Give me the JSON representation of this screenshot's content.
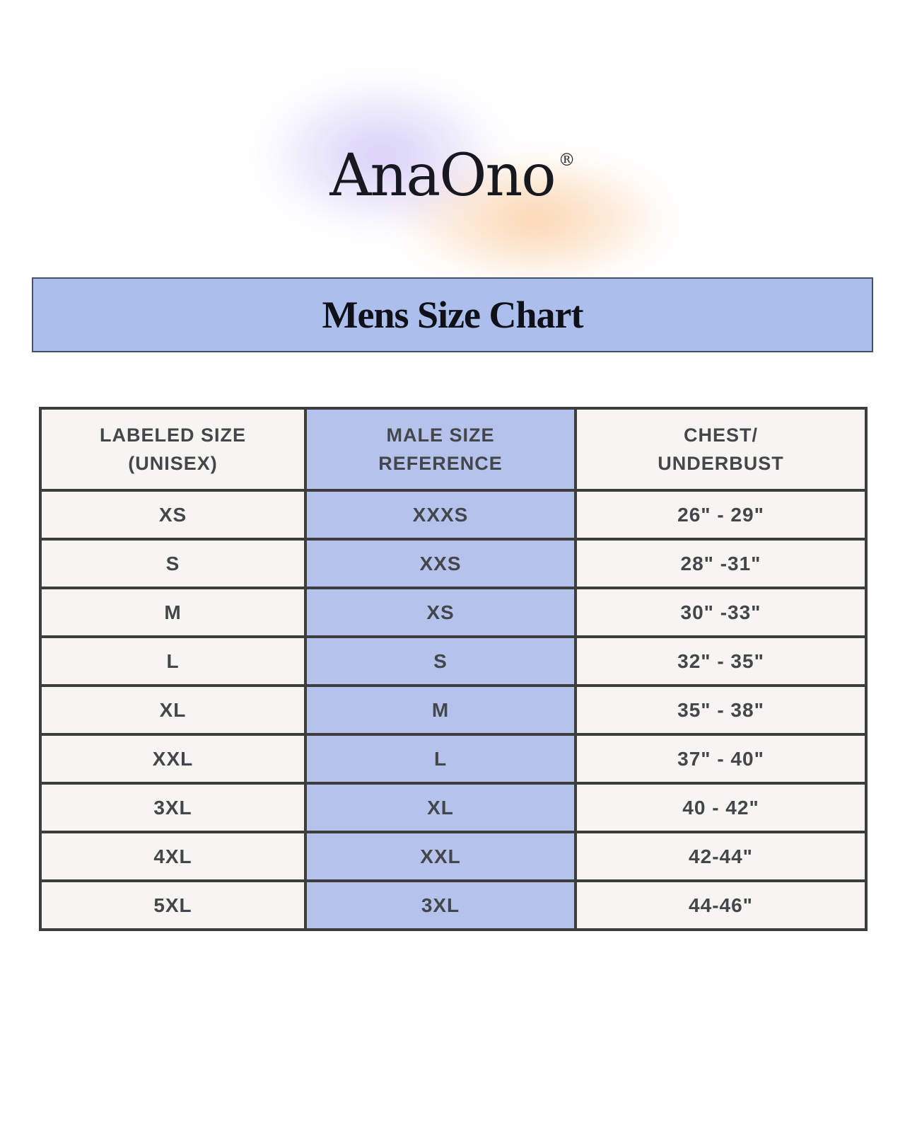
{
  "logo": {
    "text": "AnaOno",
    "registered_mark": "®"
  },
  "banner": {
    "title": "Mens Size Chart"
  },
  "table": {
    "columns": [
      {
        "label_lines": [
          "LABELED SIZE",
          "(UNISEX)"
        ],
        "highlight": false
      },
      {
        "label_lines": [
          "MALE SIZE",
          "REFERENCE"
        ],
        "highlight": true
      },
      {
        "label_lines": [
          "CHEST/",
          "UNDERBUST"
        ],
        "highlight": false
      }
    ],
    "rows": [
      [
        "XS",
        "XXXS",
        "26\" - 29\""
      ],
      [
        "S",
        "XXS",
        "28\" -31\""
      ],
      [
        "M",
        "XS",
        "30\" -33\""
      ],
      [
        "L",
        "S",
        "32\" - 35\""
      ],
      [
        "XL",
        "M",
        "35\" - 38\""
      ],
      [
        "XXL",
        "L",
        "37\" - 40\""
      ],
      [
        "3XL",
        "XL",
        "40 - 42\""
      ],
      [
        "4XL",
        "XXL",
        "42-44\""
      ],
      [
        "5XL",
        "3XL",
        "44-46\""
      ]
    ]
  },
  "colors": {
    "banner_blue": "#abbeec",
    "highlight_blue": "#b5c2ec",
    "cell_offwhite": "#f7f5f2",
    "table_border": "#3d3d3d",
    "table_text": "#43464a",
    "glow_purple": "#baacf2",
    "glow_orange": "#f8b97a"
  }
}
